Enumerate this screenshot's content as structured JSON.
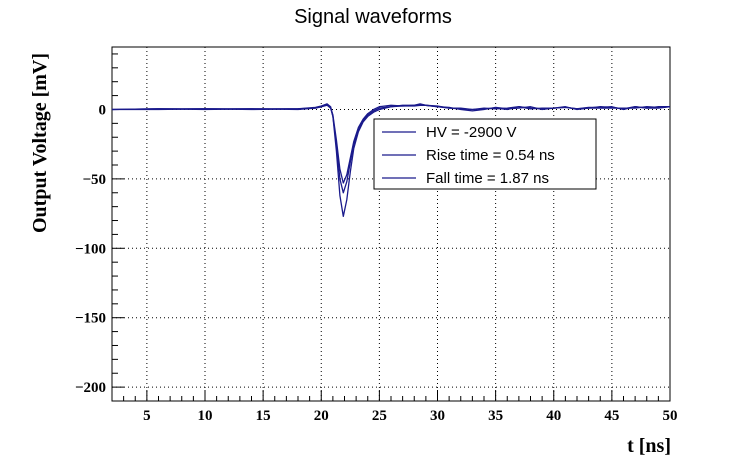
{
  "chart_data": {
    "type": "line",
    "title": "Signal waveforms",
    "xlabel": "t [ns]",
    "ylabel": "Output Voltage [mV]",
    "xlim": [
      2,
      50
    ],
    "ylim": [
      -210,
      45
    ],
    "x_ticks": [
      5,
      10,
      15,
      20,
      25,
      30,
      35,
      40,
      45,
      50
    ],
    "y_ticks": [
      0,
      -50,
      -100,
      -150,
      -200
    ],
    "y_tick_labels": [
      "0",
      "−50",
      "−100",
      "−150",
      "−200"
    ],
    "grid": true,
    "legend_position": "center-right",
    "legend": [
      {
        "text": "HV = -2900 V"
      },
      {
        "text": "Rise time = 0.54 ns"
      },
      {
        "text": "Fall time = 1.87 ns"
      }
    ],
    "series": [
      {
        "color": "#1a1a8c",
        "x": [
          2,
          6,
          10,
          14,
          18,
          19.5,
          20,
          20.5,
          20.8,
          21.0,
          21.3,
          21.6,
          21.9,
          22.2,
          22.5,
          22.8,
          23.2,
          23.6,
          24.0,
          24.5,
          25,
          26,
          27,
          28,
          28.5,
          29,
          30,
          31,
          32,
          33,
          34,
          35,
          36,
          37,
          38,
          39,
          40,
          41,
          42,
          43,
          44,
          45,
          46,
          47,
          48,
          49,
          50
        ],
        "values": [
          0,
          0.5,
          0,
          0.5,
          0.5,
          1,
          2,
          3,
          1,
          -5,
          -25,
          -50,
          -60,
          -52,
          -38,
          -25,
          -15,
          -8,
          -4,
          -1,
          1,
          2,
          3,
          3,
          3.5,
          3,
          2,
          1,
          0.5,
          0,
          0.5,
          1,
          0,
          2,
          1,
          0.5,
          1,
          2,
          0,
          1,
          2,
          1.5,
          0.5,
          2,
          1,
          2,
          2
        ]
      },
      {
        "color": "#1a1a8c",
        "x": [
          2,
          6,
          10,
          14,
          18,
          19.5,
          20,
          20.5,
          20.8,
          21.0,
          21.3,
          21.6,
          21.9,
          22.2,
          22.5,
          22.8,
          23.2,
          23.6,
          24.0,
          24.5,
          25,
          26,
          27,
          28,
          28.5,
          29,
          30,
          31,
          32,
          33,
          34,
          35,
          36,
          37,
          38,
          39,
          40,
          41,
          42,
          43,
          44,
          45,
          46,
          47,
          48,
          49,
          50
        ],
        "values": [
          0,
          0,
          0.5,
          0,
          0.5,
          1.5,
          2.5,
          4,
          2,
          -5,
          -30,
          -62,
          -77,
          -65,
          -45,
          -28,
          -16,
          -9,
          -5,
          -2,
          0,
          2,
          2.5,
          3,
          4,
          3,
          2,
          1.5,
          0,
          -1,
          0,
          1.5,
          0.5,
          1,
          2,
          0,
          1,
          1.5,
          0.5,
          1,
          1,
          1,
          1,
          1,
          2,
          1.5,
          2
        ]
      },
      {
        "color": "#1a1a8c",
        "x": [
          2,
          6,
          10,
          14,
          18,
          19.5,
          20,
          20.5,
          20.8,
          21.0,
          21.3,
          21.6,
          21.9,
          22.2,
          22.5,
          22.8,
          23.2,
          23.6,
          24.0,
          24.5,
          25,
          26,
          27,
          28,
          28.5,
          29,
          30,
          31,
          32,
          33,
          34,
          35,
          36,
          37,
          38,
          39,
          40,
          41,
          42,
          43,
          44,
          45,
          46,
          47,
          48,
          49,
          50
        ],
        "values": [
          0,
          0.5,
          0.5,
          0.5,
          0,
          1,
          2,
          3.5,
          1.5,
          -4,
          -22,
          -43,
          -53,
          -47,
          -35,
          -23,
          -13,
          -7,
          -3,
          0,
          2,
          3,
          2.5,
          2.5,
          3,
          3,
          2.5,
          1,
          1,
          0,
          1,
          0.5,
          1,
          2,
          0.5,
          1,
          1,
          1.5,
          0.5,
          1.5,
          1.5,
          2,
          0,
          2,
          1,
          1,
          2
        ]
      }
    ]
  }
}
